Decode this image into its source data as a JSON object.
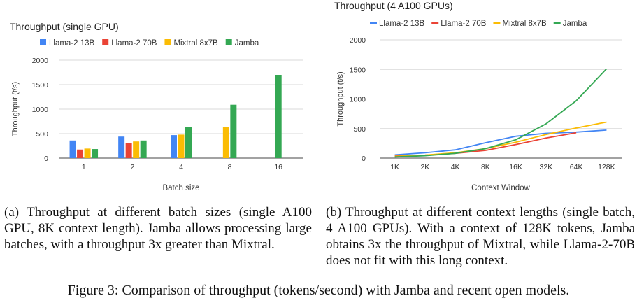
{
  "chart_data": [
    {
      "type": "bar",
      "title": "Throughput (single GPU)",
      "xlabel": "Batch size",
      "ylabel": "Throughput (t/s)",
      "categories": [
        "1",
        "2",
        "4",
        "8",
        "16"
      ],
      "ylim": [
        0,
        2000
      ],
      "yticks": [
        0,
        500,
        1000,
        1500,
        2000
      ],
      "legend_position": "top-left",
      "series": [
        {
          "name": "Llama-2 13B",
          "color": "#4285F4",
          "values": [
            360,
            440,
            470,
            null,
            null
          ]
        },
        {
          "name": "Llama-2 70B",
          "color": "#EA4335",
          "values": [
            175,
            305,
            null,
            null,
            null
          ]
        },
        {
          "name": "Mixtral 8x7B",
          "color": "#FBBC04",
          "values": [
            195,
            340,
            480,
            640,
            null
          ]
        },
        {
          "name": "Jamba",
          "color": "#34A853",
          "values": [
            185,
            360,
            635,
            1090,
            1700
          ]
        }
      ]
    },
    {
      "type": "line",
      "title": "Throughput (4 A100 GPUs)",
      "xlabel": "Context Window",
      "ylabel": "Throughput (t/s)",
      "categories": [
        "1K",
        "2K",
        "4K",
        "8K",
        "16K",
        "32K",
        "64K",
        "128K"
      ],
      "ylim": [
        0,
        2000
      ],
      "yticks": [
        0,
        500,
        1000,
        1500,
        2000
      ],
      "legend_position": "top-left",
      "series": [
        {
          "name": "Llama-2 13B",
          "color": "#4285F4",
          "values": [
            55,
            90,
            140,
            260,
            370,
            420,
            440,
            475
          ]
        },
        {
          "name": "Llama-2 70B",
          "color": "#EA4335",
          "values": [
            35,
            50,
            80,
            130,
            230,
            340,
            430,
            null
          ]
        },
        {
          "name": "Mixtral 8x7B",
          "color": "#FBBC04",
          "values": [
            30,
            50,
            90,
            160,
            270,
            400,
            510,
            610
          ]
        },
        {
          "name": "Jamba",
          "color": "#34A853",
          "values": [
            20,
            40,
            80,
            160,
            310,
            580,
            970,
            1510
          ]
        }
      ]
    }
  ],
  "captions": {
    "a": "(a) Throughput at different batch sizes (single A100 GPU, 8K context length). Jamba allows processing large batches, with a throughput 3x greater than Mixtral.",
    "b": "(b) Throughput at different context lengths (single batch, 4 A100 GPUs). With a context of 128K tokens, Jamba obtains 3x the throughput of Mixtral, while Llama-2-70B does not fit with this long context.",
    "figure": "Figure 3: Comparison of throughput (tokens/second) with Jamba and recent open models."
  }
}
